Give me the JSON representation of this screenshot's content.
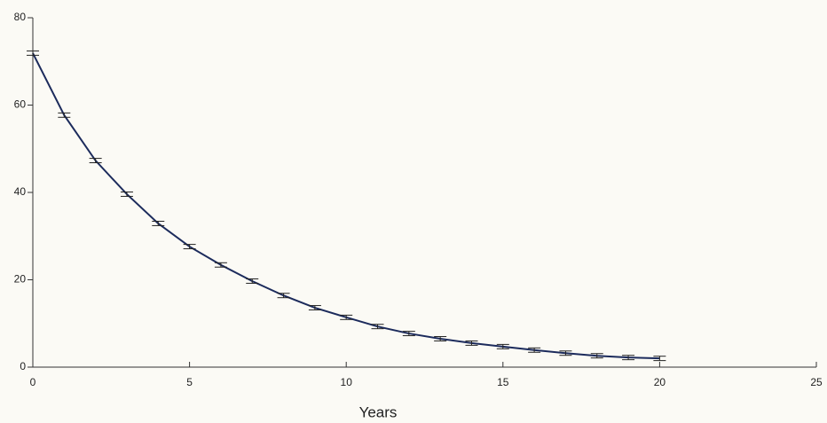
{
  "chart_data": {
    "type": "line",
    "x_label": "Years",
    "x": [
      0,
      1,
      2,
      3,
      4,
      5,
      6,
      7,
      8,
      9,
      10,
      11,
      12,
      13,
      14,
      15,
      16,
      17,
      18,
      19,
      20
    ],
    "series": [
      {
        "color": "#1c2b5c",
        "values": [
          71.9,
          57.7,
          47.3,
          39.6,
          32.9,
          27.6,
          23.4,
          19.7,
          16.4,
          13.6,
          11.4,
          9.3,
          7.7,
          6.5,
          5.5,
          4.7,
          3.9,
          3.2,
          2.6,
          2.2,
          2.0
        ],
        "errors": [
          0.5,
          0.5,
          0.5,
          0.5,
          0.5,
          0.5,
          0.5,
          0.5,
          0.5,
          0.5,
          0.5,
          0.5,
          0.5,
          0.5,
          0.5,
          0.5,
          0.5,
          0.5,
          0.5,
          0.5,
          0.5
        ]
      }
    ],
    "xlim": [
      0,
      25
    ],
    "xticks": [
      0,
      5,
      10,
      15,
      20,
      25
    ],
    "ylim": [
      0,
      80
    ],
    "yticks": [
      0,
      20,
      40,
      60,
      80
    ],
    "grid": false
  }
}
